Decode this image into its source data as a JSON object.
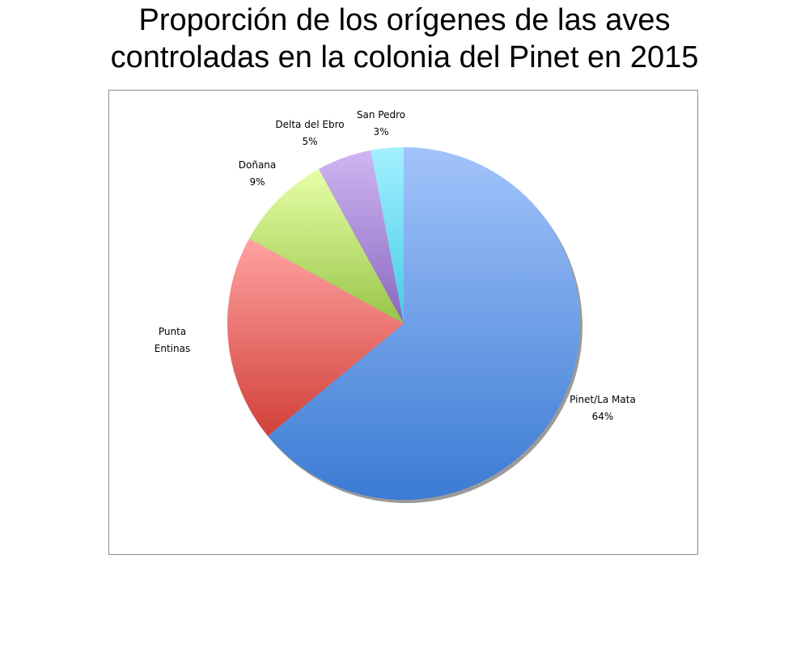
{
  "title_lines": [
    "Proporción de los orígenes de las aves",
    "controladas en la colonia del Pinet en 2015"
  ],
  "chart_data": {
    "type": "pie",
    "title": "Proporción de los orígenes de las aves controladas en la colonia del Pinet en 2015",
    "legend": "none",
    "slices": [
      {
        "label": "Pinet/La Mata",
        "value": 64,
        "pct_label": "64%",
        "color_light": "#a3c4fb",
        "color_dark": "#3b7bd3"
      },
      {
        "label": "Punta Entinas",
        "value": 19,
        "pct_label": "",
        "color_light": "#ffa3a1",
        "color_dark": "#d1403a"
      },
      {
        "label": "Doñana",
        "value": 9,
        "pct_label": "9%",
        "color_light": "#e7ffa8",
        "color_dark": "#98c548"
      },
      {
        "label": "Delta del Ebro",
        "value": 5,
        "pct_label": "5%",
        "color_light": "#cfb6f2",
        "color_dark": "#8a67c0"
      },
      {
        "label": "San Pedro",
        "value": 3,
        "pct_label": "3%",
        "color_light": "#a3f0ff",
        "color_dark": "#45cbe6"
      }
    ]
  }
}
